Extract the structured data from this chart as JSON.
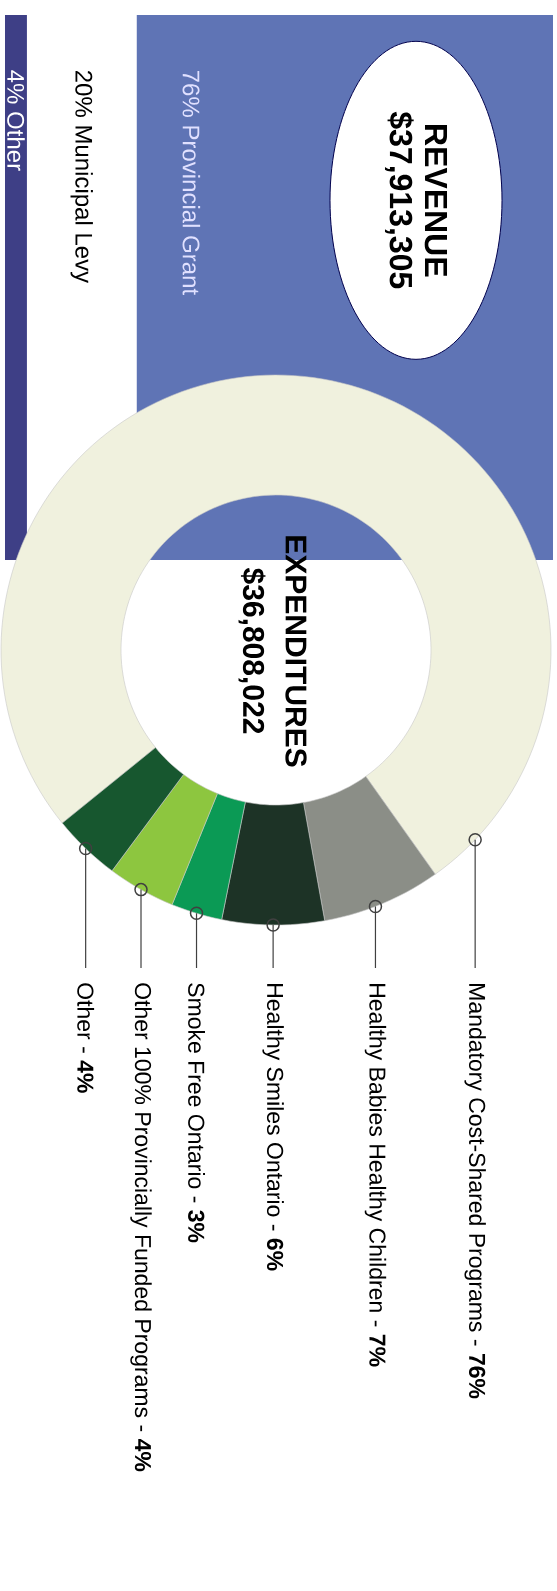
{
  "chart_data": [
    {
      "type": "bar",
      "title": "REVENUE",
      "subtitle": "$37,913,305",
      "categories": [
        null
      ],
      "stacked": true,
      "orientation": "horizontal",
      "xlim": [
        0,
        100
      ],
      "tick_labels": false,
      "series": [
        {
          "name": "Other",
          "color": "#3e3f86",
          "values": [
            4
          ],
          "value_labels": [
            "4%"
          ]
        },
        {
          "name": "Municipal Levy",
          "color": "#ffffff",
          "values": [
            20
          ],
          "value_labels": [
            "20%"
          ]
        },
        {
          "name": "Provincial Grant",
          "color": "#5f74b5",
          "values": [
            76
          ],
          "value_labels": [
            "76%"
          ]
        }
      ]
    },
    {
      "type": "donut",
      "title": "EXPENDITURES",
      "subtitle": "$36,808,022",
      "categories": [
        "Mandatory Cost-Shared Programs",
        "Healthy Babies Healthy Children",
        "Healthy Smiles Ontario",
        "Smoke Free Ontario",
        "Other 100% Provincially Funded Programs",
        "Other"
      ],
      "values": [
        76,
        7,
        6,
        3,
        4,
        4
      ],
      "value_labels": [
        "- **76%**",
        "- **7%**",
        "- **6%**",
        "- **3%**",
        "- **4%**",
        "- **4%**"
      ],
      "colors": [
        "#f0f1de",
        "#8b8e87",
        "#1d3326",
        "#0b9a55",
        "#8dc63f",
        "#17572f"
      ]
    }
  ]
}
